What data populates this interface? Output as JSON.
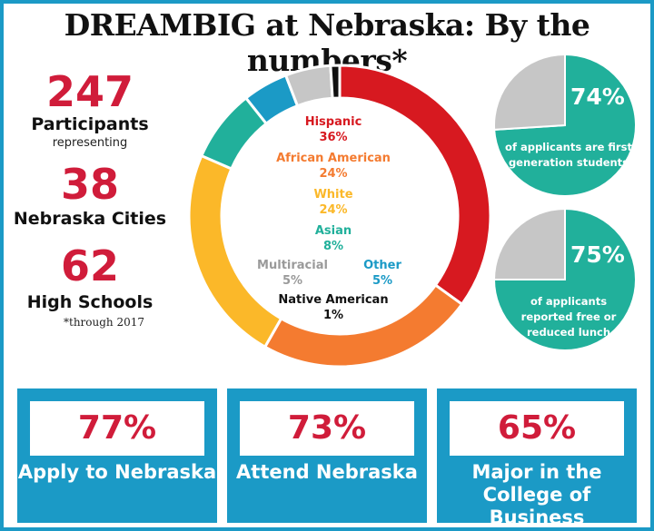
{
  "title": "DREAMBIG at Nebraska: By the numbers*",
  "stats": {
    "participants": {
      "value": "247",
      "label": "Participants",
      "sub": "representing"
    },
    "cities": {
      "value": "38",
      "label": "Nebraska Cities"
    },
    "schools": {
      "value": "62",
      "label": "High Schools"
    },
    "footnote": "*through 2017"
  },
  "chart_data": [
    {
      "type": "pie",
      "subtype": "donut",
      "categories": [
        "Hispanic",
        "African American",
        "White",
        "Asian",
        "Other",
        "Multiracial",
        "Native American"
      ],
      "values": [
        36,
        24,
        24,
        8,
        5,
        5,
        1
      ],
      "labels": [
        "36%",
        "24%",
        "24%",
        "8%",
        "5%",
        "5%",
        "1%"
      ],
      "colors": [
        "#d71920",
        "#f47b30",
        "#fbb829",
        "#21b09b",
        "#1b9ac6",
        "#c6c6c6",
        "#111111"
      ]
    },
    {
      "type": "pie",
      "categories": [
        "first generation",
        "other"
      ],
      "values": [
        74,
        26
      ],
      "label": "74%",
      "caption": "of applicants are first generation students",
      "colors": [
        "#21b09b",
        "#c6c6c6"
      ]
    },
    {
      "type": "pie",
      "categories": [
        "free or reduced lunch",
        "other"
      ],
      "values": [
        75,
        25
      ],
      "label": "75%",
      "caption": "of applicants reported free or reduced lunch",
      "colors": [
        "#21b09b",
        "#c6c6c6"
      ]
    }
  ],
  "bottom": [
    {
      "value": "77%",
      "label": "Apply to Nebraska"
    },
    {
      "value": "73%",
      "label": "Attend Nebraska"
    },
    {
      "value": "65%",
      "label": "Major in the College of Business"
    }
  ],
  "colors": {
    "accent": "#1b9ac6",
    "red": "#d01c3a",
    "teal": "#21b09b"
  }
}
